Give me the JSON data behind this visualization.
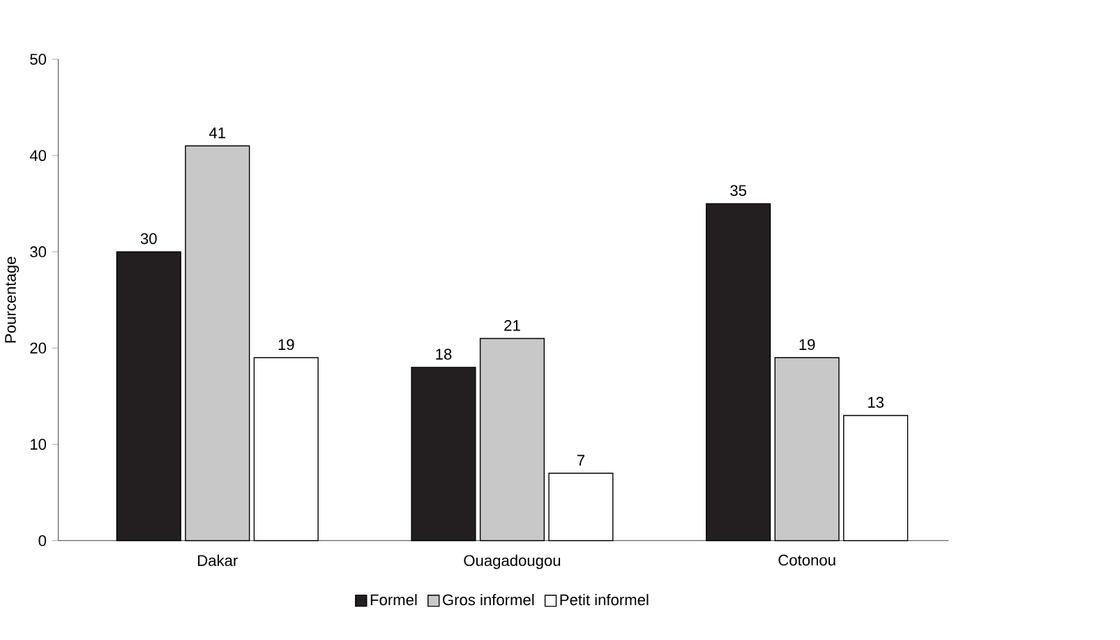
{
  "chart_data": {
    "type": "bar",
    "ylabel": "Pourcentage",
    "categories": [
      "Dakar",
      "Ouagadougou",
      "Cotonou"
    ],
    "series": [
      {
        "name": "Formel",
        "color": "#231f20",
        "values": [
          30,
          18,
          35
        ]
      },
      {
        "name": "Gros informel",
        "color": "#c8c8c8",
        "values": [
          41,
          21,
          19
        ]
      },
      {
        "name": "Petit informel",
        "color": "#ffffff",
        "values": [
          19,
          7,
          13
        ]
      }
    ],
    "ylim": [
      0,
      50
    ],
    "yticks": [
      0,
      10,
      20,
      30,
      40,
      50
    ],
    "grid": false,
    "legend": "bottom",
    "data_labels": true
  }
}
